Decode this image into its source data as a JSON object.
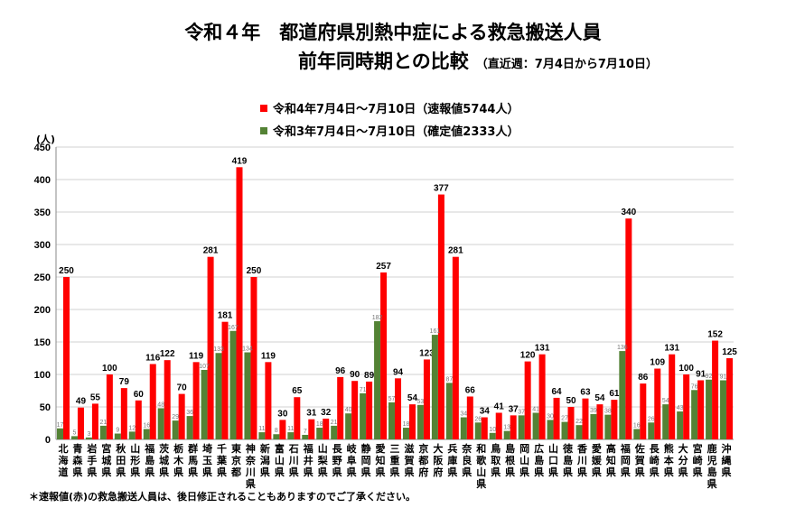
{
  "title_line1": "令和４年　都道府県別熱中症による救急搬送人員",
  "title_line2": "前年同時期との比較",
  "title_note": "（直近週：7月4日から7月10日）",
  "footnote": "＊速報値(赤)の救急搬送人員は、後日修正されることもありますのでご了承ください。",
  "colors": {
    "r4": "#ff0000",
    "r3": "#548235"
  },
  "chart_data": {
    "type": "bar",
    "ylabel": "(人)",
    "ylim": [
      0,
      450
    ],
    "yticks": [
      0,
      50,
      100,
      150,
      200,
      250,
      300,
      350,
      400,
      450
    ],
    "grid": true,
    "legend_position": "top",
    "categories": [
      "北海道",
      "青森県",
      "岩手県",
      "宮城県",
      "秋田県",
      "山形県",
      "福島県",
      "茨城県",
      "栃木県",
      "群馬県",
      "埼玉県",
      "千葉県",
      "東京都",
      "神奈川県",
      "新潟県",
      "富山県",
      "石川県",
      "福井県",
      "山梨県",
      "長野県",
      "岐阜県",
      "静岡県",
      "愛知県",
      "三重県",
      "滋賀県",
      "京都府",
      "大阪府",
      "兵庫県",
      "奈良県",
      "和歌山県",
      "鳥取県",
      "島根県",
      "岡山県",
      "広島県",
      "山口県",
      "徳島県",
      "香川県",
      "愛媛県",
      "高知県",
      "福岡県",
      "佐賀県",
      "長崎県",
      "熊本県",
      "大分県",
      "宮崎県",
      "鹿児島県",
      "沖縄県"
    ],
    "series": [
      {
        "name": "令和4年7月4日～7月10日（速報値5744人）",
        "values": [
          250,
          49,
          55,
          100,
          79,
          60,
          116,
          122,
          70,
          119,
          281,
          181,
          419,
          250,
          119,
          30,
          65,
          31,
          32,
          96,
          90,
          89,
          257,
          94,
          54,
          123,
          377,
          281,
          66,
          34,
          41,
          37,
          120,
          131,
          64,
          50,
          63,
          54,
          61,
          340,
          86,
          109,
          131,
          100,
          91,
          152,
          125
        ]
      },
      {
        "name": "令和3年7月4日～7月10日（確定値2333人）",
        "values": [
          17,
          5,
          3,
          21,
          9,
          12,
          16,
          48,
          29,
          36,
          107,
          133,
          167,
          134,
          11,
          8,
          11,
          7,
          18,
          21,
          40,
          71,
          182,
          57,
          18,
          53,
          161,
          87,
          34,
          26,
          10,
          13,
          37,
          41,
          30,
          27,
          22,
          39,
          38,
          136,
          16,
          26,
          54,
          43,
          76,
          92,
          91
        ]
      }
    ]
  }
}
